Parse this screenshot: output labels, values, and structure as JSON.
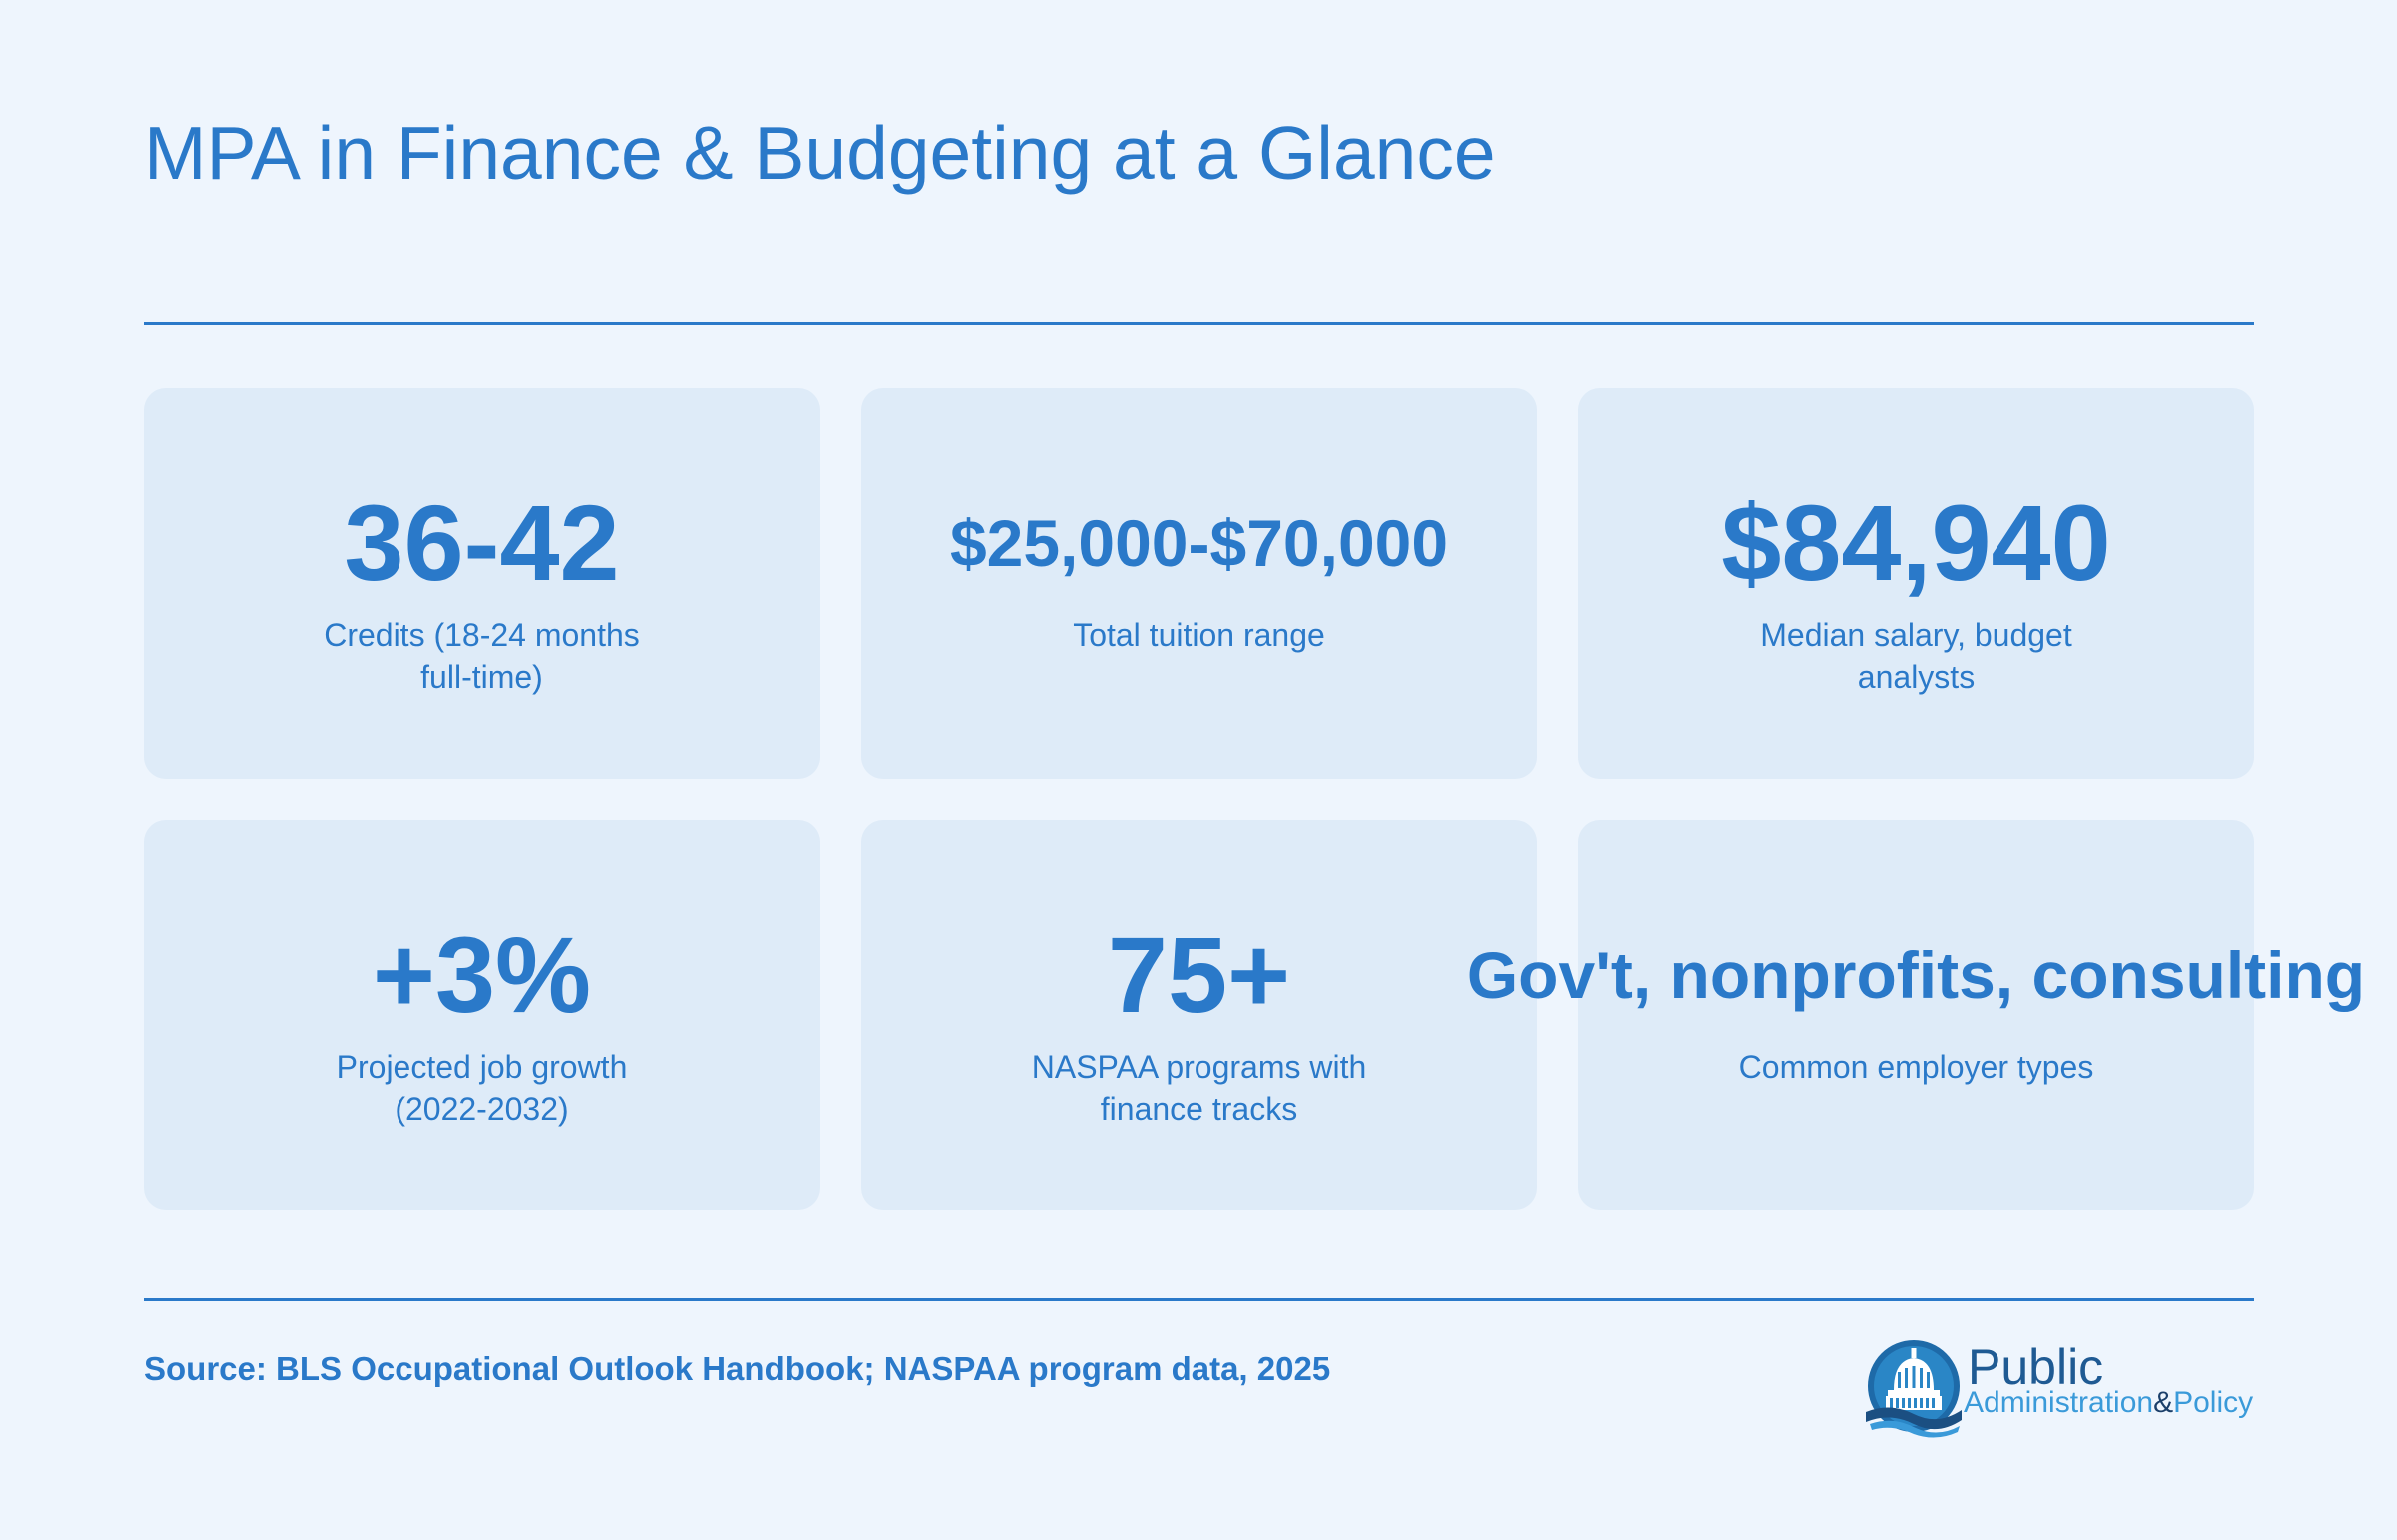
{
  "title": "MPA in Finance & Budgeting at a Glance",
  "cards": [
    {
      "value": "36-42",
      "label": "Credits (18-24 months full-time)"
    },
    {
      "value": "$25,000-$70,000",
      "label": "Total tuition range"
    },
    {
      "value": "$84,940",
      "label": "Median salary, budget analysts"
    },
    {
      "value": "+3%",
      "label": "Projected job growth (2022-2032)"
    },
    {
      "value": "75+",
      "label": "NASPAA programs with finance tracks"
    },
    {
      "value": "Gov't, nonprofits, consulting",
      "label": "Common employer types"
    }
  ],
  "source": "Source: BLS Occupational Outlook Handbook; NASPAA program data, 2025",
  "logo": {
    "line1": "Public",
    "line2a": "Administration",
    "amp": "&",
    "line2b": "Policy",
    "icon": "capitol-dome-icon"
  },
  "colors": {
    "background": "#eef5fd",
    "card": "#deebf8",
    "accent": "#2a79c9"
  }
}
